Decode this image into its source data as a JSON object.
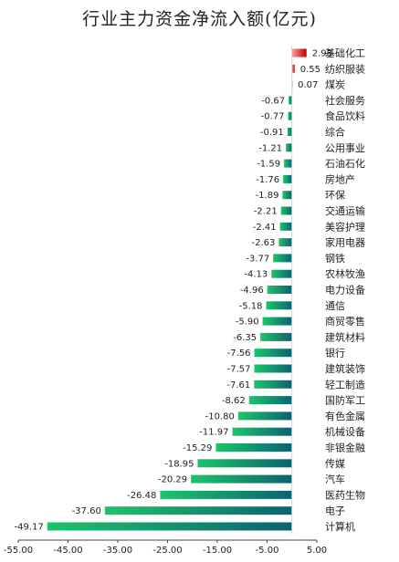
{
  "chart_data": {
    "type": "bar",
    "orientation": "horizontal",
    "title": "行业主力资金净流入额(亿元)",
    "xlabel": "",
    "ylabel": "",
    "xlim": [
      -55,
      5
    ],
    "xticks": [
      -55,
      -45,
      -35,
      -25,
      -15,
      -5,
      5
    ],
    "xtick_labels": [
      "-55.00",
      "-45.00",
      "-35.00",
      "-25.00",
      "-15.00",
      "-5.00",
      "5.00"
    ],
    "grid": false,
    "legend": "none",
    "categories": [
      "基础化工",
      "纺织服装",
      "煤炭",
      "社会服务",
      "食品饮料",
      "综合",
      "公用事业",
      "石油石化",
      "房地产",
      "环保",
      "交通运输",
      "美容护理",
      "家用电器",
      "钢铁",
      "农林牧渔",
      "电力设备",
      "通信",
      "商贸零售",
      "建筑材料",
      "银行",
      "建筑装饰",
      "轻工制造",
      "国防军工",
      "有色金属",
      "机械设备",
      "非银金融",
      "传媒",
      "汽车",
      "医药生物",
      "电子",
      "计算机"
    ],
    "values": [
      2.93,
      0.55,
      0.07,
      -0.67,
      -0.77,
      -0.91,
      -1.21,
      -1.59,
      -1.76,
      -1.89,
      -2.21,
      -2.41,
      -2.63,
      -3.77,
      -4.13,
      -4.96,
      -5.18,
      -5.9,
      -6.35,
      -7.56,
      -7.57,
      -7.61,
      -8.62,
      -10.8,
      -11.97,
      -15.29,
      -18.95,
      -20.29,
      -26.48,
      -37.6,
      -49.17
    ],
    "value_labels": [
      "2.93",
      "0.55",
      "0.07",
      "-0.67",
      "-0.77",
      "-0.91",
      "-1.21",
      "-1.59",
      "-1.76",
      "-1.89",
      "-2.21",
      "-2.41",
      "-2.63",
      "-3.77",
      "-4.13",
      "-4.96",
      "-5.18",
      "-5.90",
      "-6.35",
      "-7.56",
      "-7.57",
      "-7.61",
      "-8.62",
      "-10.80",
      "-11.97",
      "-15.29",
      "-18.95",
      "-20.29",
      "-26.48",
      "-37.60",
      "-49.17"
    ],
    "colors": {
      "positive_dark": "#c00000",
      "positive_light": "#ff9b9b",
      "negative_light": "#1dc46a",
      "negative_dark": "#0b6272"
    }
  }
}
